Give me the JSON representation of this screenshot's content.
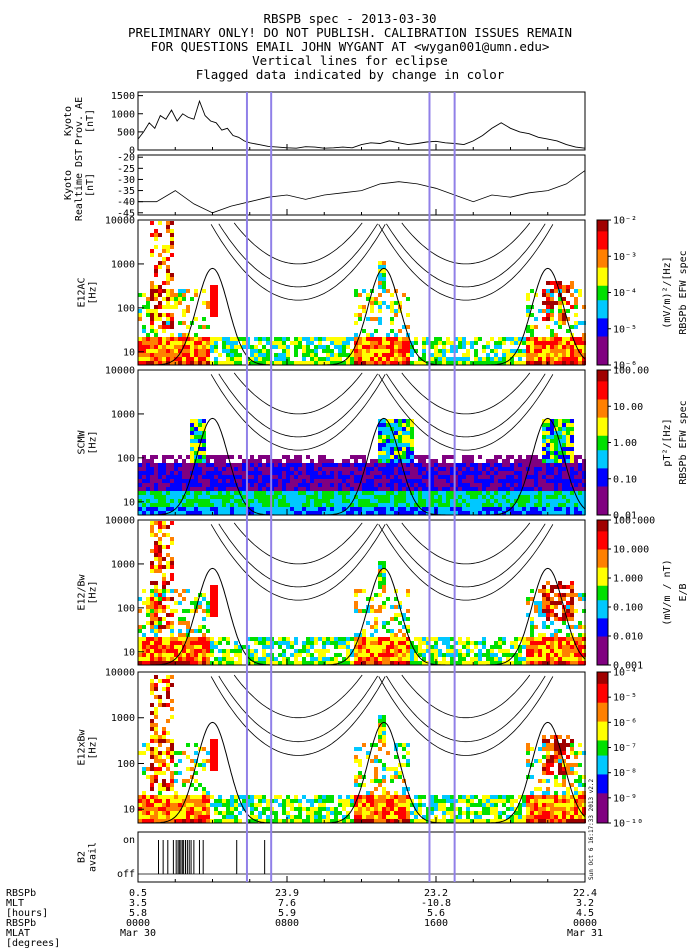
{
  "header": {
    "lines": [
      "RBSPB spec - 2013-03-30",
      "PRELIMINARY ONLY! DO NOT PUBLISH. CALIBRATION ISSUES REMAIN",
      "FOR QUESTIONS EMAIL JOHN WYGANT AT <wygan001@umn.edu>",
      "Vertical lines for eclipse",
      "Flagged data indicated by change in color"
    ]
  },
  "colors": {
    "eclipse_line": "#9080e8",
    "curve": "#000000",
    "colorbar": [
      "#ffffff",
      "#800080",
      "#0000ff",
      "#00c8ff",
      "#00e000",
      "#ffff00",
      "#ff8000",
      "#ff0000",
      "#a00000"
    ]
  },
  "chart_data": {
    "type": "heatmap",
    "time_axis": {
      "range_hours": [
        0,
        24
      ],
      "eclipse_lines_hours": [
        5.85,
        7.15,
        15.65,
        17.0
      ],
      "column_labels": {
        "hours": [
          0,
          8,
          16,
          24
        ],
        "rbspb": [
          "0.5",
          "23.9",
          "23.2",
          "22.4"
        ],
        "mlt": [
          "3.5",
          "7.6",
          "-10.8",
          "3.2"
        ],
        "mlat": [
          "5.8",
          "5.9",
          "5.6",
          "4.5"
        ],
        "hhmm": [
          "0000",
          "0800",
          "1600",
          "0000"
        ],
        "date": [
          "Mar 30",
          "",
          "",
          "Mar 31"
        ]
      },
      "row_labels": [
        "RBSPb",
        "MLT",
        "[hours]",
        "RBSPb",
        "MLAT",
        "[degrees]"
      ]
    },
    "panels": [
      {
        "id": "ae",
        "ylabel": [
          "Kyoto",
          "Prov. AE",
          "[nT]"
        ],
        "ylim": [
          0,
          1600
        ],
        "yticks": [
          "0",
          "500",
          "1000",
          "1500"
        ],
        "hours": [
          0,
          0.3,
          0.6,
          0.9,
          1.2,
          1.5,
          1.8,
          2.1,
          2.4,
          2.7,
          3.0,
          3.3,
          3.6,
          3.9,
          4.2,
          4.5,
          4.8,
          5.1,
          5.4,
          5.7,
          6.0,
          6.5,
          7.0,
          7.5,
          8.0,
          8.5,
          9.0,
          9.5,
          10.0,
          10.5,
          11.0,
          11.5,
          12.0,
          12.5,
          13.0,
          13.5,
          14.0,
          14.5,
          15.0,
          15.5,
          16.0,
          16.5,
          17.0,
          17.5,
          18.0,
          18.5,
          19.0,
          19.5,
          20.0,
          20.5,
          21.0,
          21.5,
          22.0,
          22.5,
          23.0,
          23.5,
          24.0
        ],
        "values": [
          300,
          500,
          750,
          600,
          950,
          850,
          1100,
          800,
          1000,
          900,
          850,
          1350,
          950,
          800,
          750,
          550,
          600,
          400,
          350,
          250,
          200,
          150,
          100,
          80,
          60,
          50,
          90,
          80,
          50,
          60,
          80,
          60,
          150,
          200,
          180,
          250,
          200,
          150,
          180,
          220,
          240,
          200,
          180,
          150,
          250,
          400,
          600,
          750,
          600,
          500,
          450,
          350,
          300,
          250,
          150,
          80,
          50
        ]
      },
      {
        "id": "dst",
        "ylabel": [
          "Kyoto",
          "Realtime DST",
          "[nT]"
        ],
        "ylim": [
          -46,
          -19
        ],
        "yticks": [
          "-20",
          "-25",
          "-30",
          "-35",
          "-40",
          "-45"
        ],
        "hours": [
          0,
          1,
          2,
          3,
          4,
          5,
          6,
          7,
          8,
          9,
          10,
          11,
          12,
          13,
          14,
          15,
          16,
          17,
          18,
          19,
          20,
          21,
          22,
          23,
          24
        ],
        "values": [
          -40,
          -40,
          -35,
          -41,
          -45,
          -42,
          -40,
          -38,
          -37,
          -39,
          -37,
          -36,
          -35,
          -32,
          -31,
          -32,
          -34,
          -37,
          -40,
          -37,
          -38,
          -36,
          -35,
          -32,
          -26
        ]
      },
      {
        "id": "e12ac",
        "ylabel": [
          "E12AC",
          "[Hz]"
        ],
        "yticks": [
          "10",
          "100",
          "1000",
          "10000"
        ],
        "cbar_title": "RBSPb EFW spec",
        "cbar_unit": "(mV/m)²/[Hz]",
        "cbar_ticks": [
          "10⁻⁶",
          "10⁻⁵",
          "10⁻⁴",
          "10⁻³",
          "10⁻²"
        ]
      },
      {
        "id": "scmw",
        "ylabel": [
          "SCMW",
          "[Hz]"
        ],
        "yticks": [
          "10",
          "100",
          "1000",
          "10000"
        ],
        "cbar_title": "RBSPb EFW spec",
        "cbar_unit": "pT²/[Hz]",
        "cbar_ticks": [
          "0.01",
          "0.10",
          "1.00",
          "10.00",
          "100.00"
        ]
      },
      {
        "id": "e12bw",
        "ylabel": [
          "E12/Bw",
          "[Hz]"
        ],
        "yticks": [
          "10",
          "100",
          "1000",
          "10000"
        ],
        "cbar_title": "E/B",
        "cbar_unit": "(mV/m / nT)",
        "cbar_ticks": [
          "0.001",
          "0.010",
          "0.100",
          "1.000",
          "10.000",
          "100.000"
        ]
      },
      {
        "id": "e12xbw",
        "ylabel": [
          "E12xBw",
          "[Hz]"
        ],
        "yticks": [
          "10",
          "100",
          "1000",
          "10000"
        ],
        "cbar_title": "",
        "cbar_unit": "",
        "cbar_ticks": [
          "10⁻¹⁰",
          "10⁻⁹",
          "10⁻⁸",
          "10⁻⁷",
          "10⁻⁶",
          "10⁻⁵",
          "10⁻⁴"
        ]
      },
      {
        "id": "b2",
        "ylabel": [
          "B2",
          "avail"
        ],
        "yticks": [
          "on",
          "off"
        ],
        "on_hours": [
          1.1,
          1.35,
          1.6,
          1.9,
          2.05,
          2.15,
          2.22,
          2.3,
          2.38,
          2.45,
          2.55,
          2.65,
          2.75,
          2.85,
          3.0,
          3.3,
          3.5,
          5.3,
          6.8
        ]
      }
    ]
  },
  "stamp": "Sun Oct 6 16:17:33 2013 v2.2"
}
